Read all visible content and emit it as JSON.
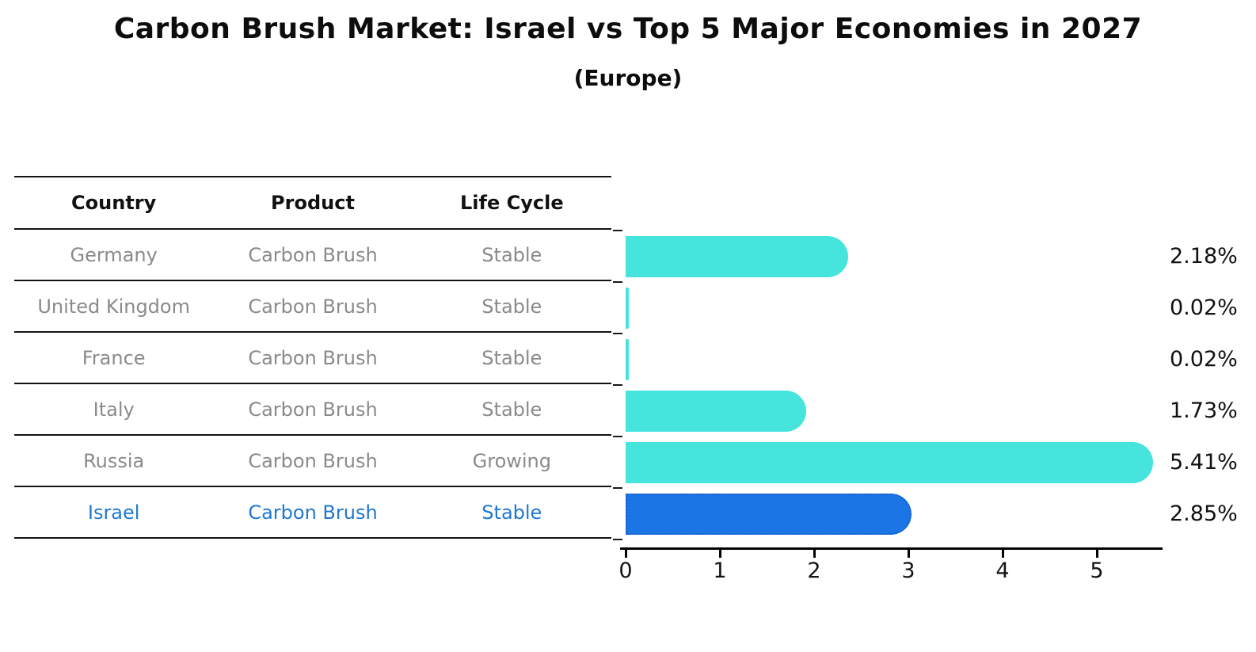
{
  "header": {
    "title": "Carbon Brush Market: Israel vs Top 5 Major Economies in 2027",
    "subtitle": "(Europe)"
  },
  "table": {
    "columns": [
      "Country",
      "Product",
      "Life Cycle"
    ],
    "rows": [
      {
        "country": "Germany",
        "product": "Carbon Brush",
        "life_cycle": "Stable",
        "highlight": false
      },
      {
        "country": "United Kingdom",
        "product": "Carbon Brush",
        "life_cycle": "Stable",
        "highlight": false
      },
      {
        "country": "France",
        "product": "Carbon Brush",
        "life_cycle": "Stable",
        "highlight": false
      },
      {
        "country": "Italy",
        "product": "Carbon Brush",
        "life_cycle": "Stable",
        "highlight": false
      },
      {
        "country": "Russia",
        "product": "Carbon Brush",
        "life_cycle": "Growing",
        "highlight": false
      },
      {
        "country": "Israel",
        "product": "Carbon Brush",
        "life_cycle": "Stable",
        "highlight": true
      }
    ]
  },
  "chart_data": {
    "type": "bar",
    "orientation": "horizontal",
    "title": "Carbon Brush Market: Israel vs Top 5 Major Economies in 2027",
    "subtitle": "(Europe)",
    "categories": [
      "Germany",
      "United Kingdom",
      "France",
      "Italy",
      "Russia",
      "Israel"
    ],
    "values": [
      2.18,
      0.02,
      0.02,
      1.73,
      5.41,
      2.85
    ],
    "value_labels": [
      "2.18%",
      "0.02%",
      "0.02%",
      "1.73%",
      "5.41%",
      "2.85%"
    ],
    "x_ticks": [
      "0",
      "1",
      "2",
      "3",
      "4",
      "5"
    ],
    "xlim": [
      0,
      5.7
    ],
    "xlabel": "",
    "ylabel": "",
    "grid": false,
    "legend": false,
    "highlight_index": 5,
    "colors": {
      "bar": "#45e4dc",
      "highlight_bar": "#1b75e4",
      "highlight_border": "#1a5fd0",
      "highlight_text": "#1f77d1",
      "row_text": "#8a8a8a",
      "value_label": "#111111",
      "axis": "#000000"
    }
  }
}
